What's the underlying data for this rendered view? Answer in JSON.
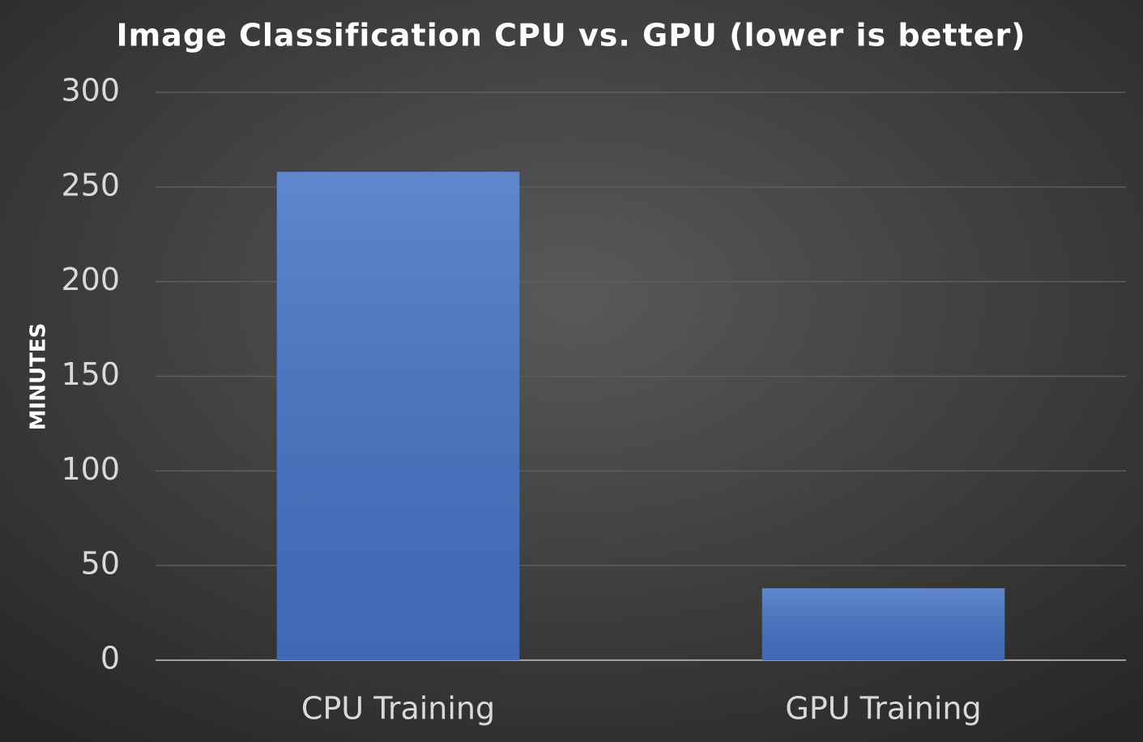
{
  "chart_data": {
    "type": "bar",
    "title": "Image Classification CPU vs. GPU (lower is better)",
    "y_label": "MINUTES",
    "categories": [
      "CPU Training",
      "GPU Training"
    ],
    "values": [
      258,
      38
    ],
    "color": "#4472c4",
    "ylim": [
      0,
      300
    ],
    "yticks": [
      0,
      50,
      100,
      150,
      200,
      250,
      300
    ],
    "grid": true
  }
}
